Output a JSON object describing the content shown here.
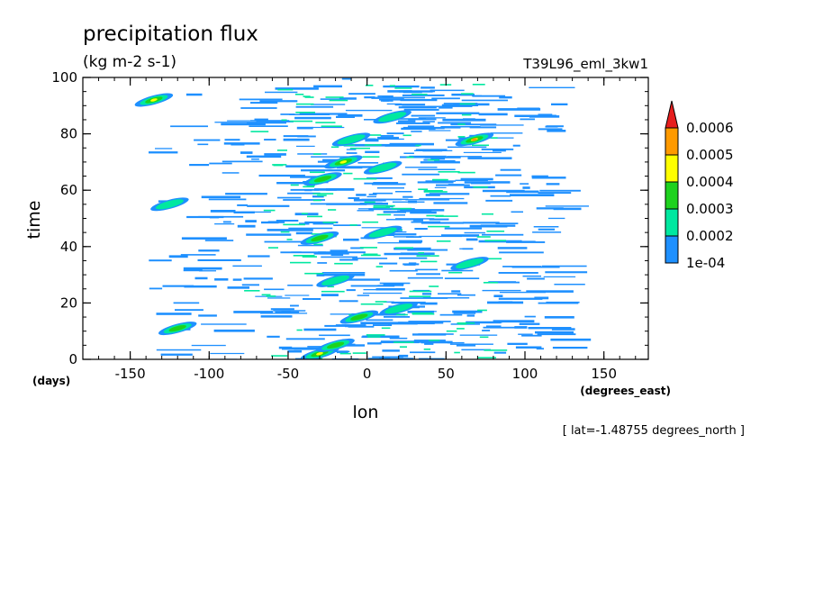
{
  "chart_data": {
    "type": "heatmap",
    "title": "precipitation flux",
    "subtitle": "(kg m-2 s-1)",
    "experiment": "T39L96_eml_3kw1",
    "xlabel": "lon",
    "xunits": "(degrees_east)",
    "ylabel": "time",
    "yunits": "(days)",
    "footnote": "[ lat=-1.48755 degrees_north ]",
    "xlim": [
      -180,
      178.125
    ],
    "ylim": [
      0,
      100
    ],
    "x_ticks": [
      -150,
      -100,
      -50,
      0,
      50,
      100,
      150
    ],
    "x_tick_labels": [
      "-150",
      "-100",
      "-50",
      "0",
      "50",
      "100",
      "150"
    ],
    "y_ticks": [
      0,
      20,
      40,
      60,
      80,
      100
    ],
    "y_tick_labels": [
      "0",
      "20",
      "40",
      "60",
      "80",
      "100"
    ],
    "colorbar": {
      "levels": [
        0.0001,
        0.0002,
        0.0003,
        0.0004,
        0.0005,
        0.0006
      ],
      "labels": [
        "1e-04",
        "0.0002",
        "0.0003",
        "0.0004",
        "0.0005",
        "0.0006"
      ],
      "colors": [
        "#1e90ff",
        "#00e8a0",
        "#1ed21e",
        "#ffff00",
        "#ff9a00",
        "#e61e1e"
      ],
      "extend": "max"
    },
    "features": [
      {
        "lon": 16,
        "time": 86,
        "level": 2
      },
      {
        "lon": -10,
        "time": 78,
        "level": 2
      },
      {
        "lon": -15,
        "time": 70,
        "level": 4
      },
      {
        "lon": -28,
        "time": 64,
        "level": 3
      },
      {
        "lon": 10,
        "time": 68,
        "level": 2
      },
      {
        "lon": 68,
        "time": 78,
        "level": 5
      },
      {
        "lon": -30,
        "time": 43,
        "level": 3
      },
      {
        "lon": 10,
        "time": 45,
        "level": 2
      },
      {
        "lon": -5,
        "time": 15,
        "level": 3
      },
      {
        "lon": 20,
        "time": 18,
        "level": 2
      },
      {
        "lon": -30,
        "time": 2,
        "level": 4
      },
      {
        "lon": -20,
        "time": 5,
        "level": 3
      },
      {
        "lon": -135,
        "time": 92,
        "level": 4
      },
      {
        "lon": -120,
        "time": 11,
        "level": 3
      },
      {
        "lon": -125,
        "time": 55,
        "level": 2
      },
      {
        "lon": -20,
        "time": 28,
        "level": 2
      },
      {
        "lon": 65,
        "time": 34,
        "level": 2
      }
    ]
  }
}
